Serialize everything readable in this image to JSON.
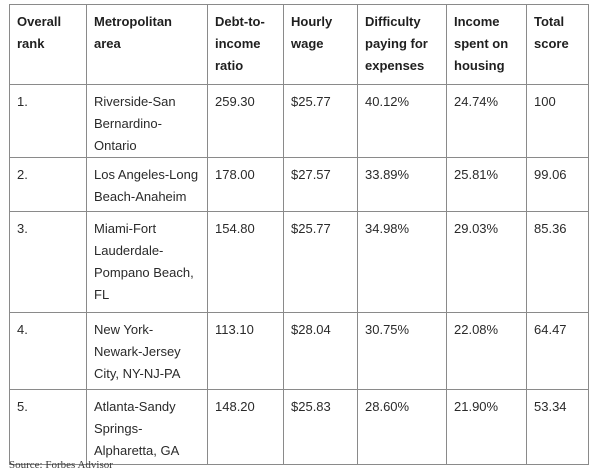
{
  "table": {
    "headers": [
      "Overall rank",
      "Metropolitan area",
      "Debt-to-income ratio",
      "Hourly wage",
      "Difficulty paying for expenses",
      "Income spent on housing",
      "Total score"
    ],
    "rows": [
      [
        "1.",
        "Riverside-San Bernardino-Ontario",
        "259.30",
        "$25.77",
        "40.12%",
        "24.74%",
        "100"
      ],
      [
        "2.",
        "Los Angeles-Long Beach-Anaheim",
        "178.00",
        "$27.57",
        "33.89%",
        "25.81%",
        "99.06"
      ],
      [
        "3.",
        "Miami-Fort Lauderdale-Pompano Beach, FL",
        "154.80",
        "$25.77",
        "34.98%",
        "29.03%",
        "85.36"
      ],
      [
        "4.",
        "New York-Newark-Jersey City, NY-NJ-PA",
        "113.10",
        "$28.04",
        "30.75%",
        "22.08%",
        "64.47"
      ],
      [
        "5.",
        "Atlanta-Sandy Springs-Alpharetta, GA",
        "148.20",
        "$25.83",
        "28.60%",
        "21.90%",
        "53.34"
      ]
    ]
  },
  "source": "Source: Forbes Advisor"
}
